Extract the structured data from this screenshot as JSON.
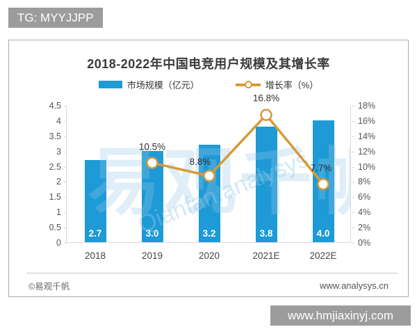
{
  "page": {
    "tg_badge": "TG: MYYJJPP",
    "site_badge": "www.hmjiaxinyj.com"
  },
  "watermark": {
    "logo_text": "易观千帆",
    "domain_text": "Qianfan.analysys"
  },
  "footer": {
    "source": "©易观千帆",
    "site": "www.analysys.cn"
  },
  "chart_data": {
    "type": "bar",
    "combo": "bar+line",
    "title": "2018-2022年中国电竞用户规模及其增长率",
    "categories": [
      "2018",
      "2019",
      "2020",
      "2021E",
      "2022E"
    ],
    "series": [
      {
        "name": "市场规模（亿元）",
        "type": "bar",
        "axis": "left",
        "color": "#1e9ad6",
        "values": [
          2.7,
          3.0,
          3.2,
          3.8,
          4.0
        ],
        "value_labels": [
          "2.7",
          "3.0",
          "3.2",
          "3.8",
          "4.0"
        ]
      },
      {
        "name": "增长率（%）",
        "type": "line",
        "axis": "right",
        "color": "#d69a38",
        "marker": "open-circle",
        "values": [
          null,
          10.5,
          8.8,
          16.8,
          7.7
        ],
        "value_labels": [
          "",
          "10.5%",
          "8.8%",
          "16.8%",
          "7.7%"
        ]
      }
    ],
    "left_axis": {
      "min": 0,
      "max": 4.5,
      "step": 0.5,
      "ticks": [
        "0",
        "0.5",
        "1",
        "1.5",
        "2",
        "2.5",
        "3",
        "3.5",
        "4",
        "4.5"
      ]
    },
    "right_axis": {
      "min": 0,
      "max": 18,
      "step": 2,
      "ticks": [
        "0%",
        "2%",
        "4%",
        "6%",
        "8%",
        "10%",
        "12%",
        "14%",
        "16%",
        "18%"
      ]
    },
    "grid": "off",
    "legend_position": "top-center"
  }
}
